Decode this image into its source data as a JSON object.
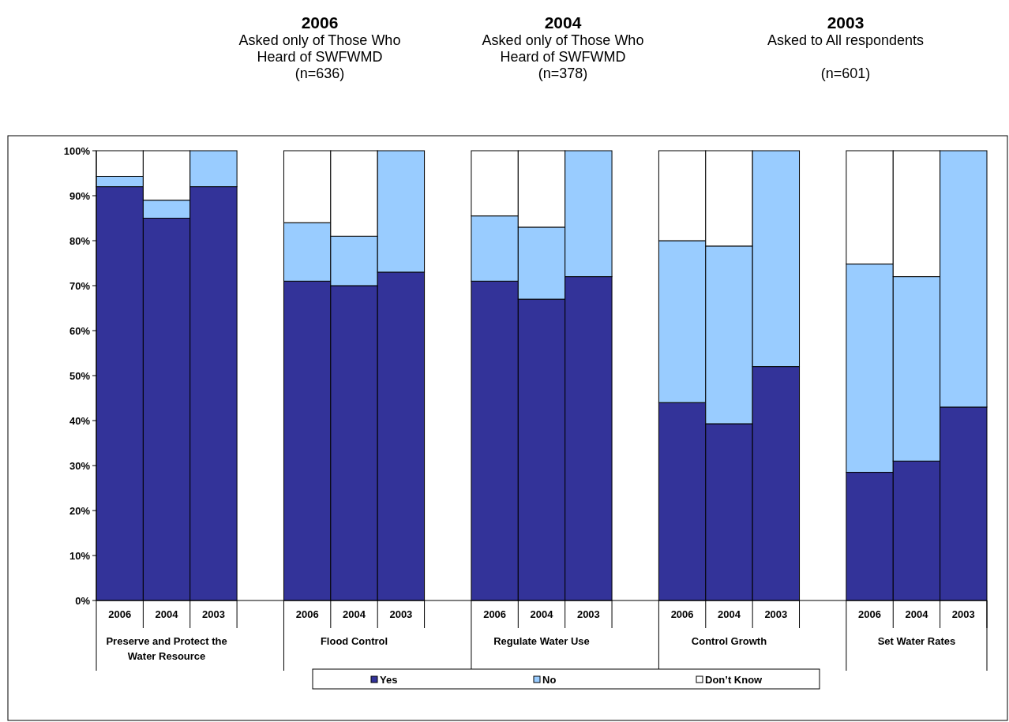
{
  "chart_data": {
    "type": "bar",
    "stacked": true,
    "categories": [
      "2006",
      "2004",
      "2003",
      null,
      "2006",
      "2004",
      "2003",
      null,
      "2006",
      "2004",
      "2003",
      null,
      "2006",
      "2004",
      "2003",
      null,
      "2006",
      "2004",
      "2003"
    ],
    "series": [
      {
        "name": "Yes",
        "color": "#333399",
        "values": [
          92,
          85,
          92,
          null,
          71,
          70,
          73,
          null,
          71,
          67,
          72,
          null,
          44,
          39.3,
          52,
          null,
          28.5,
          31,
          43
        ]
      },
      {
        "name": "No",
        "color": "#99ccff",
        "values": [
          2.3,
          4,
          8,
          null,
          13,
          11,
          27,
          null,
          14.5,
          16,
          28,
          null,
          36,
          39.5,
          48,
          null,
          46.3,
          41,
          57
        ]
      },
      {
        "name": "Don’t Know",
        "color": "#ffffff",
        "values": [
          5.7,
          11,
          0,
          null,
          16,
          19,
          0,
          null,
          14.5,
          17,
          0,
          null,
          20,
          21.2,
          0,
          null,
          25.2,
          28,
          0
        ]
      }
    ],
    "ylim": [
      0,
      100
    ],
    "yticks": [
      {
        "value": 0,
        "label": "0%"
      },
      {
        "value": 10,
        "label": "10%"
      },
      {
        "value": 20,
        "label": "20%"
      },
      {
        "value": 30,
        "label": "30%"
      },
      {
        "value": 40,
        "label": "40%"
      },
      {
        "value": 50,
        "label": "50%"
      },
      {
        "value": 60,
        "label": "60%"
      },
      {
        "value": 70,
        "label": "70%"
      },
      {
        "value": 80,
        "label": "80%"
      },
      {
        "value": 90,
        "label": "90%"
      },
      {
        "value": 100,
        "label": "100%"
      }
    ],
    "legend": "bottom",
    "annotations": [
      "2006\nAsked only of Those Who\nHeard of SWFWMD\n(n=636)",
      "2004\nAsked only of Those Who\nHeard of SWFWMD\n(n=378)",
      "2003\nAsked to All respondents\n\n(n=601)",
      "Preserve and Protect the\nWater Resource",
      "Flood Control",
      "Regulate Water Use",
      "Control Growth",
      "Set Water Rates"
    ]
  }
}
